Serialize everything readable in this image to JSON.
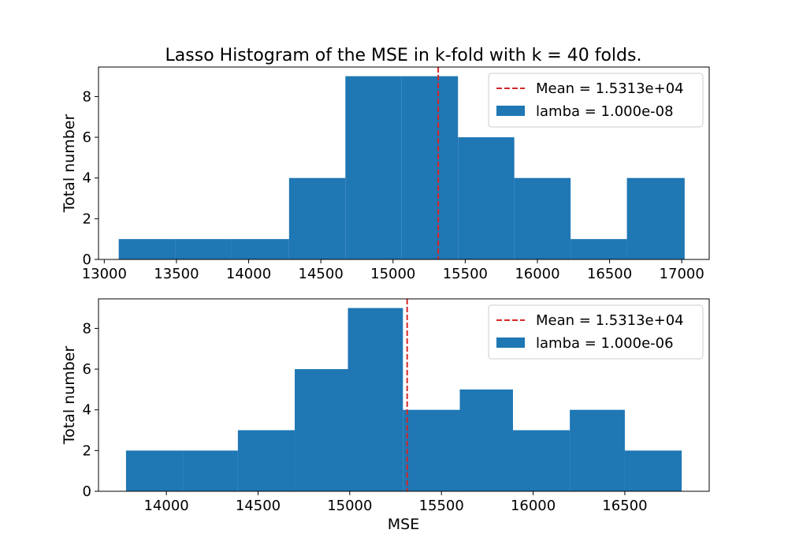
{
  "colors": {
    "bar": "#1f77b4",
    "mean_line": "#d62728",
    "axis": "#000000",
    "legend_border": "#cccccc"
  },
  "chart_data": [
    {
      "type": "bar",
      "title": "Lasso Histogram of the MSE in k-fold with k = 40 folds.",
      "xlabel": "",
      "ylabel": "Total number",
      "xlim": [
        12960,
        17190
      ],
      "ylim": [
        0,
        9.45
      ],
      "xticks": [
        13000,
        13500,
        14000,
        14500,
        15000,
        15500,
        16000,
        16500,
        17000
      ],
      "yticks": [
        0,
        2,
        4,
        6,
        8
      ],
      "bin_edges": [
        13100,
        13490,
        13880,
        14280,
        14670,
        15060,
        15450,
        15840,
        16230,
        16620,
        17020
      ],
      "counts": [
        1,
        1,
        1,
        4,
        9,
        9,
        6,
        4,
        1,
        4
      ],
      "mean": 15313,
      "legend": [
        {
          "label": "Mean = 1.5313e+04",
          "kind": "line"
        },
        {
          "label": "lamba = 1.000e-08",
          "kind": "patch"
        }
      ],
      "legend_position": "upper right",
      "grid": false
    },
    {
      "type": "bar",
      "title": "",
      "xlabel": "MSE",
      "ylabel": "Total number",
      "xlim": [
        13630,
        16960
      ],
      "ylim": [
        0,
        9.45
      ],
      "xticks": [
        14000,
        14500,
        15000,
        15500,
        16000,
        16500
      ],
      "yticks": [
        0,
        2,
        4,
        6,
        8
      ],
      "bin_edges": [
        13780,
        14090,
        14390,
        14700,
        14990,
        15290,
        15600,
        15890,
        16200,
        16500,
        16810
      ],
      "counts": [
        2,
        2,
        3,
        6,
        9,
        4,
        5,
        3,
        4,
        2
      ],
      "mean": 15313,
      "legend": [
        {
          "label": "Mean = 1.5313e+04",
          "kind": "line"
        },
        {
          "label": "lamba = 1.000e-06",
          "kind": "patch"
        }
      ],
      "legend_position": "upper right",
      "grid": false
    }
  ]
}
